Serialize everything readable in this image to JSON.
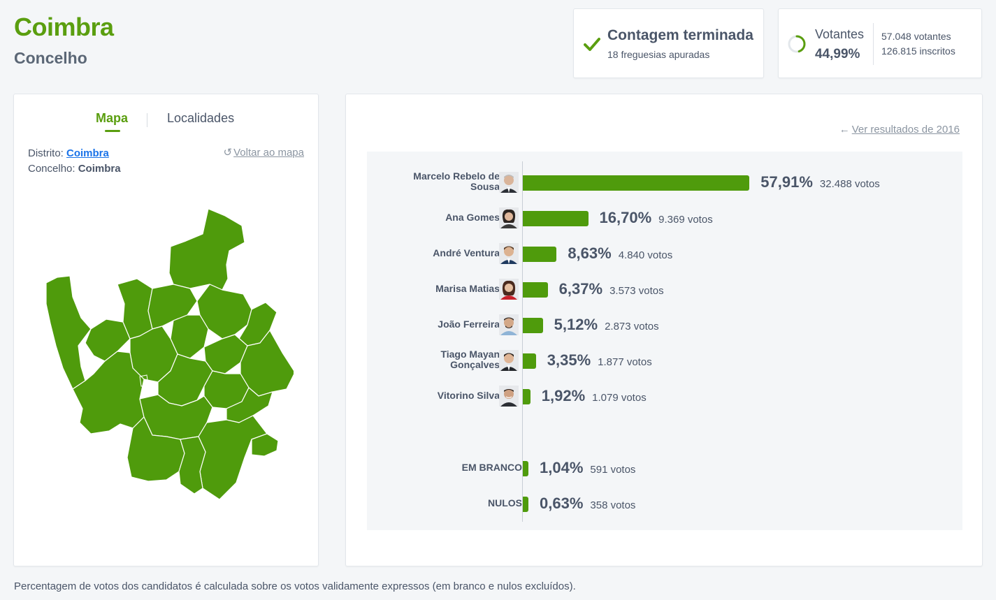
{
  "header": {
    "title": "Coimbra",
    "subtitle": "Concelho"
  },
  "status": {
    "title": "Contagem terminada",
    "subtitle": "18 freguesias apuradas"
  },
  "voters": {
    "label": "Votantes",
    "percent": "44,99%",
    "percent_value": 44.99,
    "voters_line": "57.048 votantes",
    "registered_line": "126.815 inscritos"
  },
  "map_panel": {
    "tabs": [
      "Mapa",
      "Localidades"
    ],
    "distrito_label": "Distrito:",
    "distrito_value": "Coimbra",
    "concelho_label": "Concelho:",
    "concelho_value": "Coimbra",
    "back_label": "Voltar ao mapa"
  },
  "results": {
    "prev_link": "Ver resultados de 2016",
    "candidates": [
      {
        "name": "Marcelo Rebelo de Sousa",
        "pct": "57,91%",
        "value": 57.91,
        "votes": "32.488 votos"
      },
      {
        "name": "Ana Gomes",
        "pct": "16,70%",
        "value": 16.7,
        "votes": "9.369 votos"
      },
      {
        "name": "André Ventura",
        "pct": "8,63%",
        "value": 8.63,
        "votes": "4.840 votos"
      },
      {
        "name": "Marisa Matias",
        "pct": "6,37%",
        "value": 6.37,
        "votes": "3.573 votos"
      },
      {
        "name": "João Ferreira",
        "pct": "5,12%",
        "value": 5.12,
        "votes": "2.873 votos"
      },
      {
        "name": "Tiago Mayan Gonçalves",
        "pct": "3,35%",
        "value": 3.35,
        "votes": "1.877 votos"
      },
      {
        "name": "Vitorino Silva",
        "pct": "1,92%",
        "value": 1.92,
        "votes": "1.079 votos"
      }
    ],
    "special": [
      {
        "name": "EM BRANCO",
        "pct": "1,04%",
        "value": 1.04,
        "votes": "591 votos"
      },
      {
        "name": "NULOS",
        "pct": "0,63%",
        "value": 0.63,
        "votes": "358 votos"
      }
    ]
  },
  "footnote": "Percentagem de votos dos candidatos é calculada sobre os votos validamente expressos (em branco e nulos excluídos).",
  "colors": {
    "accent": "#5a9e0f",
    "bar": "#4f9b0c",
    "map_fill": "#4f9b0c",
    "link": "#1a73e8"
  },
  "chart_data": {
    "type": "bar",
    "categories": [
      "Marcelo Rebelo de Sousa",
      "Ana Gomes",
      "André Ventura",
      "Marisa Matias",
      "João Ferreira",
      "Tiago Mayan Gonçalves",
      "Vitorino Silva",
      "EM BRANCO",
      "NULOS"
    ],
    "values": [
      57.91,
      16.7,
      8.63,
      6.37,
      5.12,
      3.35,
      1.92,
      1.04,
      0.63
    ],
    "title": "",
    "xlabel": "",
    "ylabel": "",
    "xlim": [
      0,
      100
    ]
  }
}
